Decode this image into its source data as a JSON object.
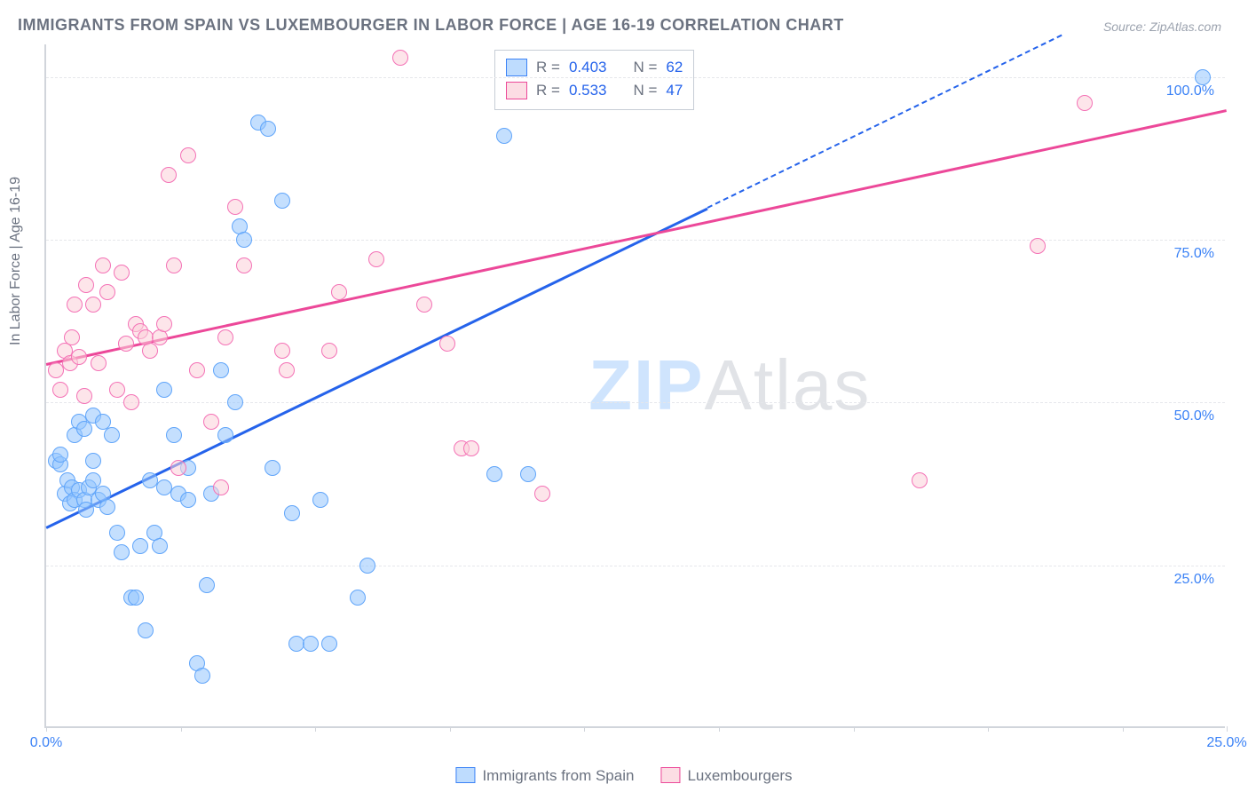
{
  "title": "IMMIGRANTS FROM SPAIN VS LUXEMBOURGER IN LABOR FORCE | AGE 16-19 CORRELATION CHART",
  "source": "Source: ZipAtlas.com",
  "watermark_part1": "ZIP",
  "watermark_part2": "Atlas",
  "ylabel": "In Labor Force | Age 16-19",
  "chart": {
    "type": "scatter",
    "xlim": [
      0,
      25
    ],
    "ylim": [
      0,
      105
    ],
    "background_color": "#ffffff",
    "grid_color": "#e5e7eb",
    "axis_color": "#d1d5db",
    "tick_color": "#3b82f6",
    "tick_fontsize": 16,
    "label_fontsize": 16,
    "label_color": "#6b7280",
    "grid_y": [
      25,
      50,
      75,
      100
    ],
    "yticks": [
      {
        "v": 25,
        "label": "25.0%"
      },
      {
        "v": 50,
        "label": "50.0%"
      },
      {
        "v": 75,
        "label": "75.0%"
      },
      {
        "v": 100,
        "label": "100.0%"
      }
    ],
    "xticks": [
      {
        "v": 0,
        "label": "0.0%"
      },
      {
        "v": 25,
        "label": "25.0%"
      }
    ],
    "xtick_marks": [
      0,
      2.85,
      5.7,
      8.55,
      11.4,
      14.25,
      17.1,
      19.95,
      22.8,
      25
    ]
  },
  "series": [
    {
      "name": "Immigrants from Spain",
      "point_fill": "rgba(147,197,253,0.55)",
      "point_stroke": "#60a5fa",
      "point_radius": 9,
      "legend_swatch_fill": "rgba(147,197,253,0.6)",
      "legend_swatch_stroke": "#3b82f6",
      "R_label": "R =",
      "R": "0.403",
      "N_label": "N =",
      "N": "62",
      "trend": {
        "color": "#2563eb",
        "width": 2.5,
        "x1": 0,
        "y1": 31,
        "x2_solid": 14.0,
        "y2_solid": 80,
        "x2_dash": 21.5,
        "y2_dash": 106.5,
        "dash_pattern": "8 6"
      },
      "points": [
        [
          0.2,
          41
        ],
        [
          0.3,
          40.5
        ],
        [
          0.4,
          36
        ],
        [
          0.45,
          38
        ],
        [
          0.5,
          34.5
        ],
        [
          0.55,
          37
        ],
        [
          0.6,
          35
        ],
        [
          0.7,
          36.5
        ],
        [
          0.8,
          35
        ],
        [
          0.85,
          33.5
        ],
        [
          0.9,
          37
        ],
        [
          1.0,
          38
        ],
        [
          1.1,
          35
        ],
        [
          1.2,
          36
        ],
        [
          1.3,
          34
        ],
        [
          0.6,
          45
        ],
        [
          0.7,
          47
        ],
        [
          0.8,
          46
        ],
        [
          1.0,
          48
        ],
        [
          1.2,
          47
        ],
        [
          1.4,
          45
        ],
        [
          1.5,
          30
        ],
        [
          1.6,
          27
        ],
        [
          1.8,
          20
        ],
        [
          1.9,
          20
        ],
        [
          2.0,
          28
        ],
        [
          2.1,
          15
        ],
        [
          2.2,
          38
        ],
        [
          2.3,
          30
        ],
        [
          2.4,
          28
        ],
        [
          2.5,
          37
        ],
        [
          2.5,
          52
        ],
        [
          2.7,
          45
        ],
        [
          2.8,
          36
        ],
        [
          3.0,
          40
        ],
        [
          3.0,
          35
        ],
        [
          3.2,
          10
        ],
        [
          3.3,
          8
        ],
        [
          3.4,
          22
        ],
        [
          3.5,
          36
        ],
        [
          3.7,
          55
        ],
        [
          3.8,
          45
        ],
        [
          4.0,
          50
        ],
        [
          4.1,
          77
        ],
        [
          4.2,
          75
        ],
        [
          4.5,
          93
        ],
        [
          4.7,
          92
        ],
        [
          4.8,
          40
        ],
        [
          5.0,
          81
        ],
        [
          5.2,
          33
        ],
        [
          5.3,
          13
        ],
        [
          5.6,
          13
        ],
        [
          5.8,
          35
        ],
        [
          6.0,
          13
        ],
        [
          6.6,
          20
        ],
        [
          6.8,
          25
        ],
        [
          9.5,
          39
        ],
        [
          9.7,
          91
        ],
        [
          10.2,
          39
        ],
        [
          24.5,
          100
        ],
        [
          0.3,
          42
        ],
        [
          1.0,
          41
        ]
      ]
    },
    {
      "name": "Luxembourgers",
      "point_fill": "rgba(251,207,216,0.55)",
      "point_stroke": "#f472b6",
      "point_radius": 9,
      "legend_swatch_fill": "rgba(251,207,216,0.7)",
      "legend_swatch_stroke": "#ec4899",
      "R_label": "R =",
      "R": "0.533",
      "N_label": "N =",
      "N": "47",
      "trend": {
        "color": "#ec4899",
        "width": 2.5,
        "x1": 0,
        "y1": 56,
        "x2_solid": 25,
        "y2_solid": 95
      },
      "points": [
        [
          0.2,
          55
        ],
        [
          0.3,
          52
        ],
        [
          0.4,
          58
        ],
        [
          0.5,
          56
        ],
        [
          0.55,
          60
        ],
        [
          0.6,
          65
        ],
        [
          0.7,
          57
        ],
        [
          0.8,
          51
        ],
        [
          0.85,
          68
        ],
        [
          1.0,
          65
        ],
        [
          1.1,
          56
        ],
        [
          1.2,
          71
        ],
        [
          1.3,
          67
        ],
        [
          1.5,
          52
        ],
        [
          1.6,
          70
        ],
        [
          1.7,
          59
        ],
        [
          1.8,
          50
        ],
        [
          1.9,
          62
        ],
        [
          2.0,
          61
        ],
        [
          2.1,
          60
        ],
        [
          2.2,
          58
        ],
        [
          2.4,
          60
        ],
        [
          2.5,
          62
        ],
        [
          2.6,
          85
        ],
        [
          2.7,
          71
        ],
        [
          2.8,
          40
        ],
        [
          3.0,
          88
        ],
        [
          3.2,
          55
        ],
        [
          3.5,
          47
        ],
        [
          3.7,
          37
        ],
        [
          3.8,
          60
        ],
        [
          4.0,
          80
        ],
        [
          4.2,
          71
        ],
        [
          5.0,
          58
        ],
        [
          5.1,
          55
        ],
        [
          6.0,
          58
        ],
        [
          6.2,
          67
        ],
        [
          7.0,
          72
        ],
        [
          7.5,
          103
        ],
        [
          8.0,
          65
        ],
        [
          8.5,
          59
        ],
        [
          8.8,
          43
        ],
        [
          9.0,
          43
        ],
        [
          10.5,
          36
        ],
        [
          18.5,
          38
        ],
        [
          21.0,
          74
        ],
        [
          22.0,
          96
        ]
      ]
    }
  ],
  "legend_bottom": [
    {
      "label": "Immigrants from Spain"
    },
    {
      "label": "Luxembourgers"
    }
  ]
}
